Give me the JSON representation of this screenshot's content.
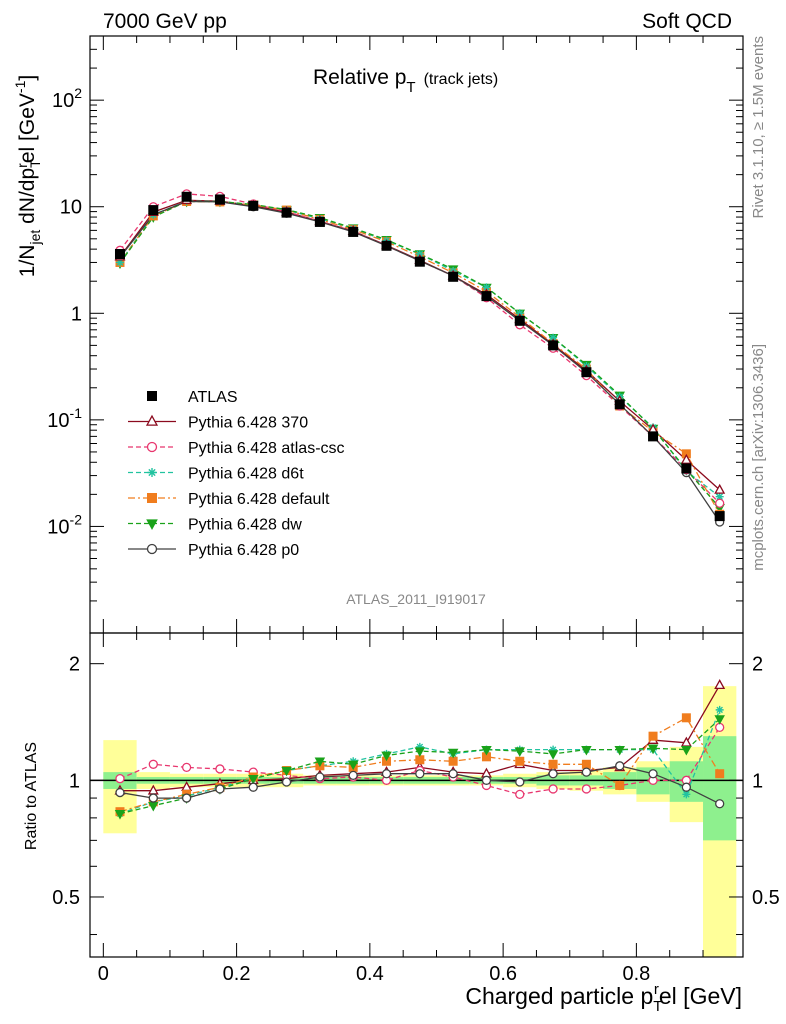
{
  "header": {
    "left": "7000 GeV pp",
    "right": "Soft QCD"
  },
  "side_labels": {
    "rivet": "Rivet 3.1.10, ≥ 1.5M events",
    "mcplots": "mcplots.cern.ch [arXiv:1306.3436]"
  },
  "analysis_id": "ATLAS_2011_I919017",
  "colors": {
    "ATLAS": "#000000",
    "370": "#8b0a1e",
    "atlas-csc": "#e8366e",
    "d6t": "#22c3a0",
    "default": "#f07d1e",
    "dw": "#1aa21a",
    "p0": "#404040",
    "band_outer": "#ffff99",
    "band_inner": "#8ef08e"
  },
  "chart_data": [
    {
      "type": "line",
      "panel": "main",
      "title": "Relative p",
      "title_sub": "T",
      "title_note": "(track jets)",
      "ylabel": "1/N",
      "ylabel_sub1": "jet",
      "ylabel_mid": " dN/dp",
      "ylabel_sub2": "T",
      "ylabel_sup2": "r",
      "ylabel_tail": "el [GeV",
      "ylabel_sup3": "-1",
      "ylabel_close": "]",
      "yscale": "log",
      "ylim": [
        0.001,
        400
      ],
      "xlim": [
        -0.02,
        0.96
      ],
      "yticks": [
        {
          "v": 0.01,
          "base": "10",
          "exp": "-2"
        },
        {
          "v": 0.1,
          "base": "10",
          "exp": "-1"
        },
        {
          "v": 1,
          "base": "1",
          "exp": ""
        },
        {
          "v": 10,
          "base": "10",
          "exp": ""
        },
        {
          "v": 100,
          "base": "10",
          "exp": "2"
        }
      ],
      "x": [
        0.025,
        0.075,
        0.125,
        0.175,
        0.225,
        0.275,
        0.325,
        0.375,
        0.425,
        0.475,
        0.525,
        0.575,
        0.625,
        0.675,
        0.725,
        0.775,
        0.825,
        0.875,
        0.925
      ],
      "series": [
        {
          "key": "ATLAS",
          "name": "ATLAS",
          "marker": "square",
          "dash": "",
          "values": [
            3.6,
            9.3,
            12.4,
            11.7,
            10.2,
            8.8,
            7.2,
            5.8,
            4.3,
            3.05,
            2.2,
            1.45,
            0.85,
            0.5,
            0.28,
            0.14,
            0.07,
            0.035,
            0.0125
          ]
        },
        {
          "key": "370",
          "name": "Pythia 6.428 370",
          "marker": "triangle",
          "dash": "",
          "values": [
            3.4,
            8.9,
            11.5,
            11.3,
            10.2,
            8.9,
            7.3,
            5.9,
            4.35,
            3.15,
            2.25,
            1.5,
            0.88,
            0.51,
            0.29,
            0.15,
            0.081,
            0.042,
            0.022
          ]
        },
        {
          "key": "atlas-csc",
          "name": "Pythia 6.428 atlas-csc",
          "marker": "circle",
          "dash": "5,3",
          "values": [
            3.9,
            10.0,
            13.2,
            12.5,
            10.6,
            9.0,
            7.3,
            5.9,
            4.3,
            3.1,
            2.25,
            1.4,
            0.78,
            0.47,
            0.26,
            0.135,
            0.07,
            0.034,
            0.0165
          ]
        },
        {
          "key": "d6t",
          "name": "Pythia 6.428 d6t",
          "marker": "star",
          "dash": "5,3",
          "values": [
            3.0,
            8.4,
            11.3,
            11.2,
            10.4,
            9.3,
            7.7,
            6.2,
            4.8,
            3.6,
            2.5,
            1.75,
            1.0,
            0.59,
            0.32,
            0.165,
            0.085,
            0.033,
            0.019
          ]
        },
        {
          "key": "default",
          "name": "Pythia 6.428 default",
          "marker": "squareFilled",
          "dash": "7,3,2,3",
          "values": [
            3.0,
            8.2,
            11.2,
            11.1,
            10.4,
            9.3,
            7.6,
            6.1,
            4.7,
            3.4,
            2.4,
            1.6,
            0.92,
            0.52,
            0.3,
            0.135,
            0.078,
            0.048,
            0.013
          ]
        },
        {
          "key": "dw",
          "name": "Pythia 6.428 dw",
          "marker": "triangleDown",
          "dash": "5,3",
          "values": [
            2.95,
            8.0,
            11.2,
            11.2,
            10.5,
            9.4,
            7.9,
            6.3,
            4.9,
            3.6,
            2.6,
            1.75,
            1.0,
            0.59,
            0.33,
            0.17,
            0.083,
            0.034,
            0.015
          ]
        },
        {
          "key": "p0",
          "name": "Pythia 6.428 p0",
          "marker": "circle",
          "dash": "",
          "values": [
            3.35,
            8.4,
            11.2,
            11.1,
            10.0,
            8.7,
            7.2,
            5.8,
            4.3,
            3.1,
            2.25,
            1.45,
            0.85,
            0.5,
            0.28,
            0.14,
            0.07,
            0.032,
            0.011
          ]
        }
      ]
    },
    {
      "type": "line",
      "panel": "ratio",
      "ylabel": "Ratio to ATLAS",
      "xlabel": "Charged particle p",
      "xlabel_sub": "T",
      "xlabel_sup": "r",
      "xlabel_tail": "el [GeV]",
      "yscale": "log",
      "ylim": [
        0.35,
        2.4
      ],
      "xlim": [
        -0.02,
        0.96
      ],
      "yticks": [
        {
          "v": 0.5,
          "label": "0.5"
        },
        {
          "v": 1,
          "label": "1"
        },
        {
          "v": 2,
          "label": "2"
        }
      ],
      "xticks": [
        {
          "v": 0,
          "label": "0"
        },
        {
          "v": 0.2,
          "label": "0.2"
        },
        {
          "v": 0.4,
          "label": "0.4"
        },
        {
          "v": 0.6,
          "label": "0.6"
        },
        {
          "v": 0.8,
          "label": "0.8"
        }
      ],
      "x": [
        0.025,
        0.075,
        0.125,
        0.175,
        0.225,
        0.275,
        0.325,
        0.375,
        0.425,
        0.475,
        0.525,
        0.575,
        0.625,
        0.675,
        0.725,
        0.775,
        0.825,
        0.875,
        0.925
      ],
      "band_inner": [
        0.05,
        0.02,
        0.02,
        0.02,
        0.02,
        0.02,
        0.02,
        0.02,
        0.02,
        0.02,
        0.02,
        0.02,
        0.02,
        0.03,
        0.03,
        0.05,
        0.08,
        0.12,
        0.3
      ],
      "band_outer": [
        0.27,
        0.05,
        0.04,
        0.04,
        0.04,
        0.04,
        0.03,
        0.03,
        0.03,
        0.03,
        0.03,
        0.03,
        0.04,
        0.05,
        0.06,
        0.08,
        0.12,
        0.22,
        0.75
      ],
      "series": [
        {
          "key": "370",
          "values": [
            0.94,
            0.94,
            0.96,
            0.98,
            1.0,
            1.01,
            1.03,
            1.04,
            1.05,
            1.08,
            1.05,
            1.04,
            1.1,
            1.06,
            1.06,
            1.08,
            1.27,
            1.25,
            1.76
          ]
        },
        {
          "key": "atlas-csc",
          "values": [
            1.01,
            1.1,
            1.08,
            1.07,
            1.05,
            1.03,
            1.01,
            1.02,
            1.0,
            1.06,
            1.02,
            0.97,
            0.92,
            0.95,
            0.95,
            0.97,
            1.0,
            1.0,
            1.37
          ]
        },
        {
          "key": "d6t",
          "values": [
            0.82,
            0.88,
            0.91,
            0.96,
            1.01,
            1.06,
            1.09,
            1.12,
            1.17,
            1.22,
            1.17,
            1.2,
            1.2,
            1.2,
            1.2,
            1.2,
            1.2,
            0.92,
            1.52
          ]
        },
        {
          "key": "default",
          "values": [
            0.83,
            0.88,
            0.92,
            0.96,
            1.02,
            1.06,
            1.09,
            1.08,
            1.12,
            1.13,
            1.12,
            1.15,
            1.12,
            1.1,
            1.1,
            0.97,
            1.3,
            1.45,
            1.04
          ]
        },
        {
          "key": "dw",
          "values": [
            0.82,
            0.86,
            0.9,
            0.95,
            1.01,
            1.06,
            1.12,
            1.1,
            1.16,
            1.19,
            1.18,
            1.2,
            1.19,
            1.17,
            1.2,
            1.2,
            1.21,
            1.2,
            1.44
          ]
        },
        {
          "key": "p0",
          "values": [
            0.93,
            0.9,
            0.9,
            0.95,
            0.96,
            0.99,
            1.02,
            1.03,
            1.04,
            1.04,
            1.04,
            1.0,
            0.99,
            1.04,
            1.05,
            1.09,
            1.04,
            0.96,
            0.87
          ]
        }
      ]
    }
  ]
}
